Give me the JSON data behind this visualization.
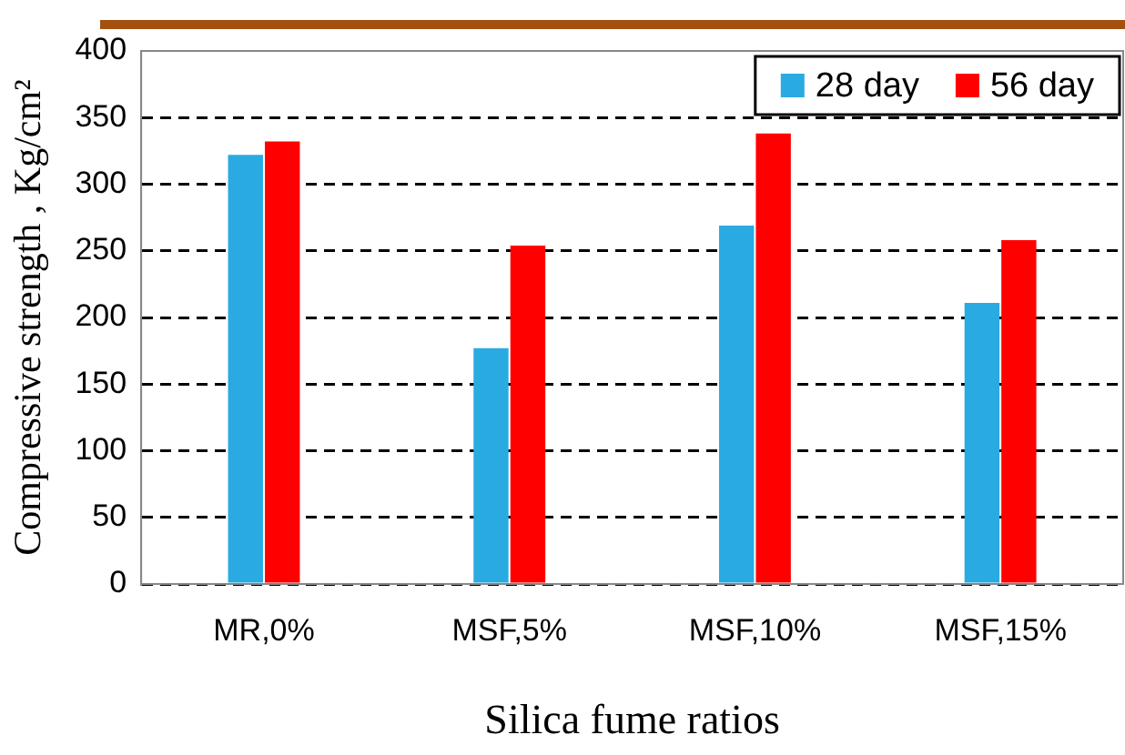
{
  "chart_data": {
    "type": "bar",
    "xlabel": "Silica fume ratios",
    "ylabel": "Compressive strength , Kg/cm²",
    "categories": [
      "MR,0%",
      "MSF,5%",
      "MSF,10%",
      "MSF,15%"
    ],
    "series": [
      {
        "name": "28 day",
        "color": "#29abe2",
        "values": [
          322,
          177,
          269,
          211
        ]
      },
      {
        "name": "56 day",
        "color": "#ff0000",
        "values": [
          332,
          254,
          338,
          258
        ]
      }
    ],
    "ylim": [
      0,
      400
    ],
    "yticks": [
      0,
      50,
      100,
      150,
      200,
      250,
      300,
      350,
      400
    ],
    "grid": "y",
    "legend": "top right"
  }
}
